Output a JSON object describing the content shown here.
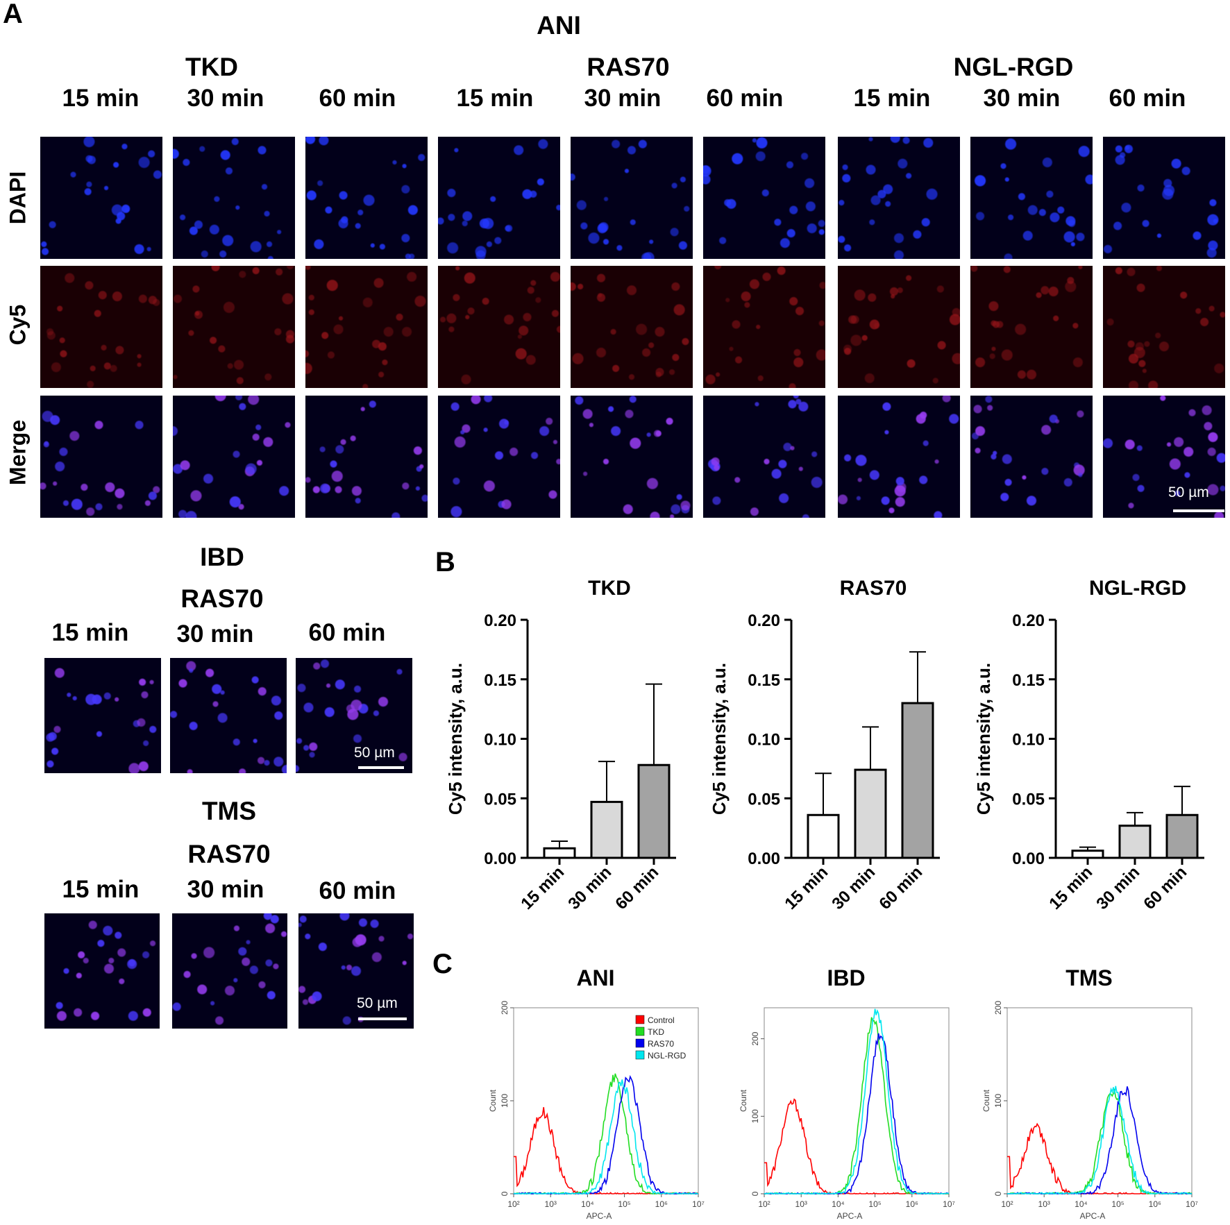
{
  "panel_labels": {
    "A": "A",
    "B": "B",
    "C": "C"
  },
  "panel_a": {
    "title": "ANI",
    "groups": [
      "TKD",
      "RAS70",
      "NGL-RGD"
    ],
    "times": [
      "15 min",
      "30 min",
      "60 min"
    ],
    "rows": [
      "DAPI",
      "Cy5",
      "Merge"
    ],
    "scale_bar": "50 µm"
  },
  "ibd": {
    "title": "IBD",
    "subtitle": "RAS70",
    "times": [
      "15 min",
      "30 min",
      "60 min"
    ],
    "scale_bar": "50 µm"
  },
  "tms": {
    "title": "TMS",
    "subtitle": "RAS70",
    "times": [
      "15 min",
      "30 min",
      "60 min"
    ],
    "scale_bar": "50 µm"
  },
  "colors": {
    "dapi": "#1f2bff",
    "cy5": "#b3141a",
    "merge": "#8a2be2",
    "control": "#ff0000",
    "tkd": "#22dd22",
    "ras70": "#0000ee",
    "ngl": "#00e6ee"
  },
  "chart_data": [
    {
      "type": "bar",
      "title": "TKD",
      "ylabel": "Cy5 intensity, a.u.",
      "categories": [
        "15 min",
        "30 min",
        "60 min"
      ],
      "values": [
        0.008,
        0.047,
        0.078
      ],
      "errors": [
        0.006,
        0.034,
        0.068
      ],
      "ylim": [
        0,
        0.2
      ],
      "yticks": [
        "0.00",
        "0.05",
        "0.10",
        "0.15",
        "0.20"
      ],
      "bar_colors": [
        "#ffffff",
        "#d9d9d9",
        "#a3a3a3"
      ]
    },
    {
      "type": "bar",
      "title": "RAS70",
      "ylabel": "Cy5 intensity, a.u.",
      "categories": [
        "15 min",
        "30 min",
        "60 min"
      ],
      "values": [
        0.036,
        0.074,
        0.13
      ],
      "errors": [
        0.035,
        0.036,
        0.043
      ],
      "ylim": [
        0,
        0.2
      ],
      "yticks": [
        "0.00",
        "0.05",
        "0.10",
        "0.15",
        "0.20"
      ],
      "bar_colors": [
        "#ffffff",
        "#d9d9d9",
        "#a3a3a3"
      ]
    },
    {
      "type": "bar",
      "title": "NGL-RGD",
      "ylabel": "Cy5 intensity, a.u.",
      "categories": [
        "15 min",
        "30 min",
        "60 min"
      ],
      "values": [
        0.006,
        0.027,
        0.036
      ],
      "errors": [
        0.003,
        0.011,
        0.024
      ],
      "ylim": [
        0,
        0.2
      ],
      "yticks": [
        "0.00",
        "0.05",
        "0.10",
        "0.15",
        "0.20"
      ],
      "bar_colors": [
        "#ffffff",
        "#d9d9d9",
        "#a3a3a3"
      ]
    },
    {
      "type": "line",
      "title": "ANI",
      "xlabel": "APC-A",
      "ylabel": "Count",
      "xscale": "log",
      "xlim": [
        100,
        10000000
      ],
      "ylim": [
        0,
        200
      ],
      "xticks": [
        "10²",
        "10³",
        "10⁴",
        "10⁵",
        "10⁶",
        "10⁷"
      ],
      "yticks": [
        "0",
        "100",
        "200"
      ],
      "legend": [
        "Control",
        "TKD",
        "RAS70",
        "NGL-RGD"
      ],
      "series": [
        {
          "name": "Control",
          "peak_x": 600,
          "peak_y": 88
        },
        {
          "name": "TKD",
          "peak_x": 55000,
          "peak_y": 125
        },
        {
          "name": "RAS70",
          "peak_x": 130000,
          "peak_y": 125
        },
        {
          "name": "NGL-RGD",
          "peak_x": 85000,
          "peak_y": 120
        }
      ]
    },
    {
      "type": "line",
      "title": "IBD",
      "xlabel": "APC-A",
      "ylabel": "Count",
      "xscale": "log",
      "xlim": [
        100,
        10000000
      ],
      "ylim": [
        0,
        240
      ],
      "xticks": [
        "10²",
        "10³",
        "10⁴",
        "10⁵",
        "10⁶",
        "10⁷"
      ],
      "yticks": [
        "0",
        "100",
        "200"
      ],
      "series": [
        {
          "name": "Control",
          "peak_x": 600,
          "peak_y": 118
        },
        {
          "name": "TKD",
          "peak_x": 90000,
          "peak_y": 225
        },
        {
          "name": "RAS70",
          "peak_x": 140000,
          "peak_y": 205
        },
        {
          "name": "NGL-RGD",
          "peak_x": 110000,
          "peak_y": 235
        }
      ]
    },
    {
      "type": "line",
      "title": "TMS",
      "xlabel": "APC-A",
      "ylabel": "Count",
      "xscale": "log",
      "xlim": [
        100,
        10000000
      ],
      "ylim": [
        0,
        200
      ],
      "xticks": [
        "10²",
        "10³",
        "10⁴",
        "10⁵",
        "10⁶",
        "10⁷"
      ],
      "yticks": [
        "0",
        "100",
        "200"
      ],
      "series": [
        {
          "name": "Control",
          "peak_x": 600,
          "peak_y": 72
        },
        {
          "name": "TKD",
          "peak_x": 70000,
          "peak_y": 110
        },
        {
          "name": "RAS70",
          "peak_x": 150000,
          "peak_y": 113
        },
        {
          "name": "NGL-RGD",
          "peak_x": 80000,
          "peak_y": 112
        }
      ]
    }
  ]
}
